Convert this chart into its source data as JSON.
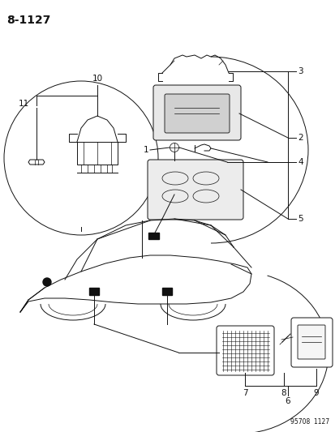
{
  "title": "8-1127",
  "footer": "95708  1127",
  "bg_color": "#ffffff",
  "fig_width": 4.14,
  "fig_height": 5.33,
  "dpi": 100
}
